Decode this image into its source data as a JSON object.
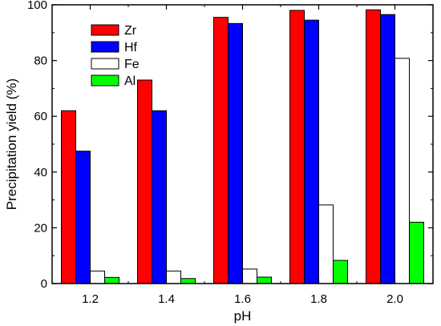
{
  "chart_data": {
    "type": "bar",
    "title": "",
    "xlabel": "pH",
    "ylabel": "Precipitation yield (%)",
    "categories": [
      "1.2",
      "1.4",
      "1.6",
      "1.8",
      "2.0"
    ],
    "ylim": [
      0,
      100
    ],
    "yticks": [
      0,
      20,
      40,
      60,
      80,
      100
    ],
    "grid": false,
    "legend_position": "top-left",
    "series": [
      {
        "name": "Zr",
        "color": "#ff0000",
        "values": [
          62,
          73,
          95.5,
          98,
          98.2
        ]
      },
      {
        "name": "Hf",
        "color": "#0000ff",
        "values": [
          47.5,
          62,
          93.3,
          94.5,
          96.5
        ]
      },
      {
        "name": "Fe",
        "color": "#ffffff",
        "values": [
          4.5,
          4.5,
          5.2,
          28.2,
          80.8
        ]
      },
      {
        "name": "Al",
        "color": "#00ff00",
        "values": [
          2.2,
          1.8,
          2.3,
          8.3,
          22
        ]
      }
    ]
  }
}
